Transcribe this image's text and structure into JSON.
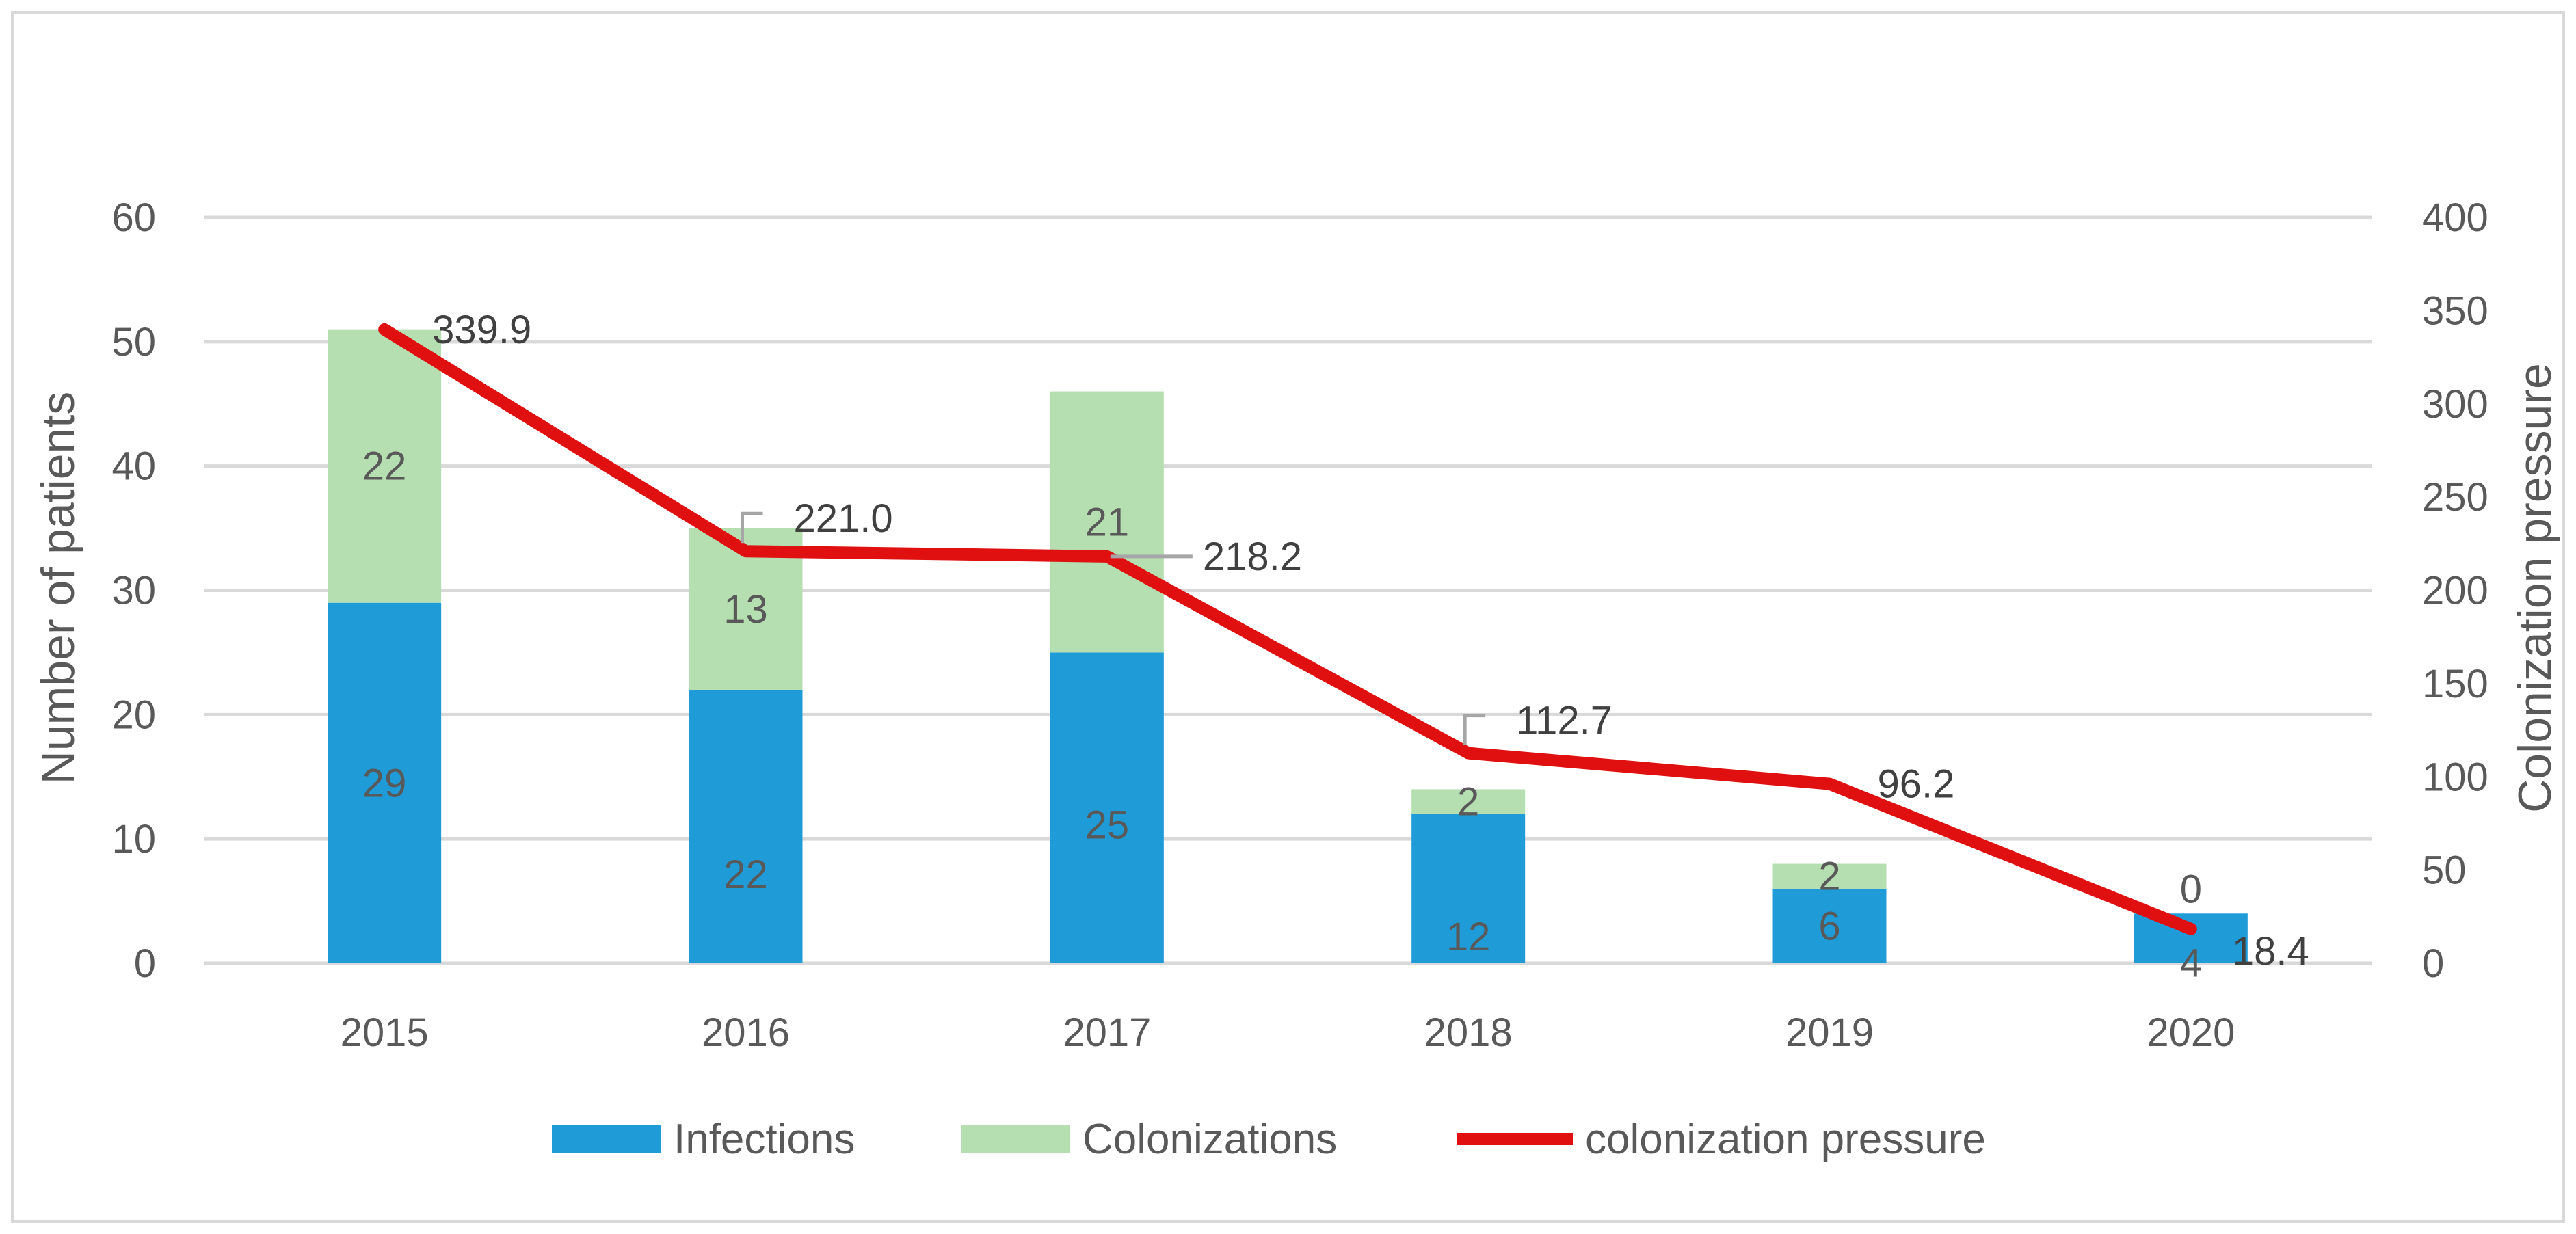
{
  "chart_data": {
    "type": "bar",
    "stacked": true,
    "categories": [
      "2015",
      "2016",
      "2017",
      "2018",
      "2019",
      "2020"
    ],
    "series": [
      {
        "name": "Infections",
        "kind": "bar",
        "axis": "left",
        "color": "#1f9bd7",
        "values": [
          29,
          22,
          25,
          12,
          6,
          4
        ]
      },
      {
        "name": "Colonizations",
        "kind": "bar",
        "axis": "left",
        "color": "#b6dfb1",
        "values": [
          22,
          13,
          21,
          2,
          2,
          0
        ]
      },
      {
        "name": "colonization pressure",
        "kind": "line",
        "axis": "right",
        "color": "#e01010",
        "values": [
          339.9,
          221.0,
          218.2,
          112.7,
          96.2,
          18.4
        ]
      }
    ],
    "line_labels": [
      "339.9",
      "221.0",
      "218.2",
      "112.7",
      "96.2",
      "18.4"
    ],
    "ylabel": "Number of patients",
    "y2label": "Colonization pressure",
    "ylim": [
      0,
      60
    ],
    "y2lim": [
      0,
      400
    ],
    "yticks": [
      "0",
      "10",
      "20",
      "30",
      "40",
      "50",
      "60"
    ],
    "y2ticks": [
      "0",
      "50",
      "100",
      "150",
      "200",
      "250",
      "300",
      "350",
      "400"
    ],
    "grid": true,
    "legend_position": "bottom"
  }
}
